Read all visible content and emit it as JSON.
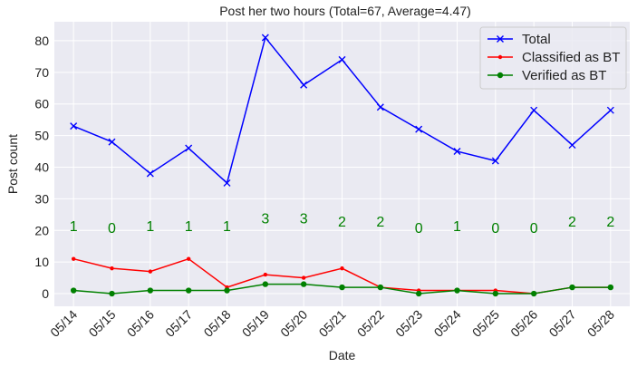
{
  "chart_data": {
    "type": "line",
    "title": "Post her two hours (Total=67, Average=4.47)",
    "xlabel": "Date",
    "ylabel": "Post count",
    "ylim": [
      -4,
      86
    ],
    "yticks": [
      0,
      10,
      20,
      30,
      40,
      50,
      60,
      70,
      80
    ],
    "grid": true,
    "legend_position": "top-right",
    "categories": [
      "05/14",
      "05/15",
      "05/16",
      "05/17",
      "05/18",
      "05/19",
      "05/20",
      "05/21",
      "05/22",
      "05/23",
      "05/24",
      "05/25",
      "05/26",
      "05/27",
      "05/28"
    ],
    "series": [
      {
        "name": "Total",
        "color": "#0000ff",
        "marker": "x",
        "values": [
          53,
          48,
          38,
          46,
          35,
          81,
          66,
          74,
          59,
          52,
          45,
          42,
          58,
          47,
          58
        ]
      },
      {
        "name": "Classified as BT",
        "color": "#ff0000",
        "marker": "dot-small",
        "values": [
          11,
          8,
          7,
          11,
          2,
          6,
          5,
          8,
          2,
          1,
          1,
          1,
          0,
          2,
          2
        ]
      },
      {
        "name": "Verified as BT",
        "color": "#008000",
        "marker": "dot",
        "values": [
          1,
          0,
          1,
          1,
          1,
          3,
          3,
          2,
          2,
          0,
          1,
          0,
          0,
          2,
          2
        ]
      }
    ],
    "annotations": {
      "color": "#008000",
      "labels": [
        "1",
        "0",
        "1",
        "1",
        "1",
        "3",
        "3",
        "2",
        "2",
        "0",
        "1",
        "0",
        "0",
        "2",
        "2"
      ],
      "y": [
        21.5,
        21.0,
        21.5,
        21.5,
        21.5,
        24.0,
        24.0,
        23.0,
        23.0,
        21.0,
        21.5,
        21.0,
        21.0,
        23.0,
        23.0
      ]
    }
  }
}
